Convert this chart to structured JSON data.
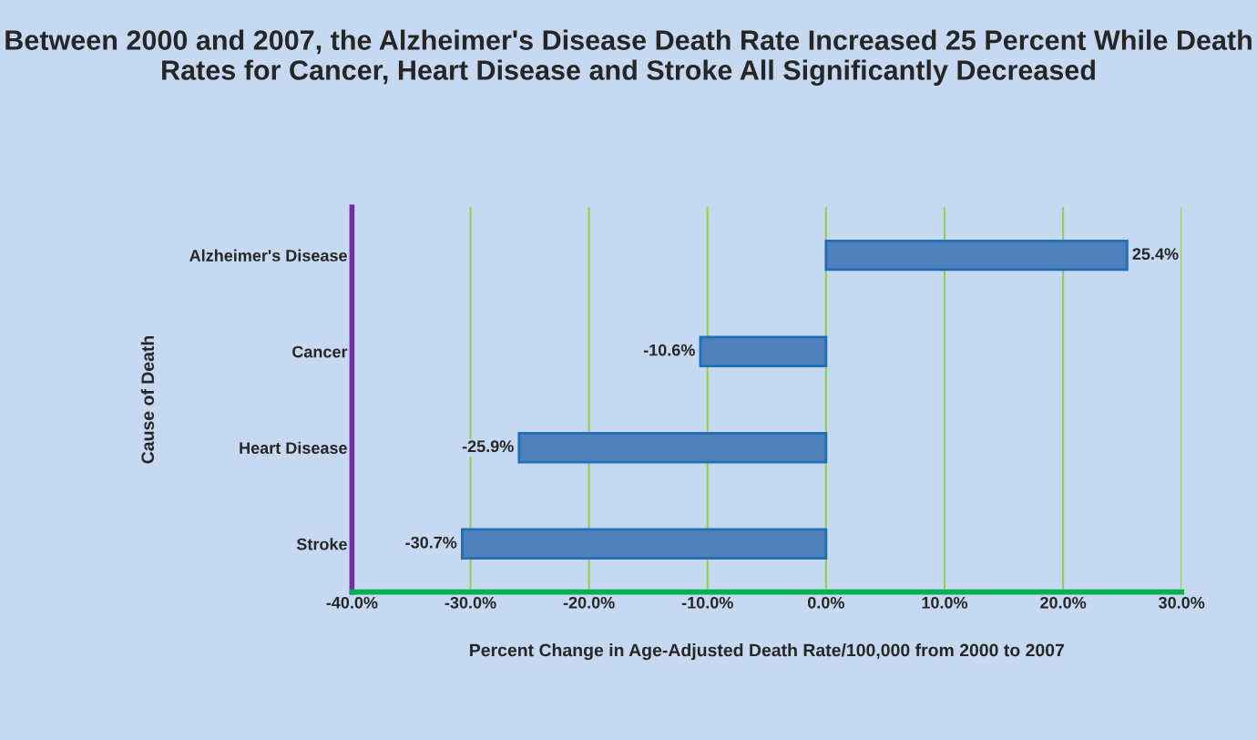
{
  "chart_data": {
    "type": "bar",
    "orientation": "horizontal",
    "title": "Between 2000 and 2007, the Alzheimer's Disease Death Rate Increased 25 Percent While Death Rates for Cancer, Heart Disease and Stroke All Significantly Decreased",
    "xlabel": "Percent Change in Age-Adjusted Death Rate/100,000 from 2000 to 2007",
    "ylabel": "Cause of Death",
    "categories": [
      "Alzheimer's Disease",
      "Cancer",
      "Heart Disease",
      "Stroke"
    ],
    "values": [
      25.4,
      -10.6,
      -25.9,
      -30.7
    ],
    "color": "#4f81bd",
    "value_labels": [
      "25.4%",
      "-10.6%",
      "-25.9%",
      "-30.7%"
    ],
    "xlim": [
      -40,
      30
    ],
    "xticks": [
      {
        "value": -40,
        "label": "-40.0%"
      },
      {
        "value": -30,
        "label": "-30.0%"
      },
      {
        "value": -20,
        "label": "-20.0%"
      },
      {
        "value": -10,
        "label": "-10.0%"
      },
      {
        "value": 0,
        "label": "0.0%"
      },
      {
        "value": 10,
        "label": "10.0%"
      },
      {
        "value": 20,
        "label": "20.0%"
      },
      {
        "value": 30,
        "label": "30.0%"
      }
    ],
    "grid": "x",
    "legend": false
  }
}
